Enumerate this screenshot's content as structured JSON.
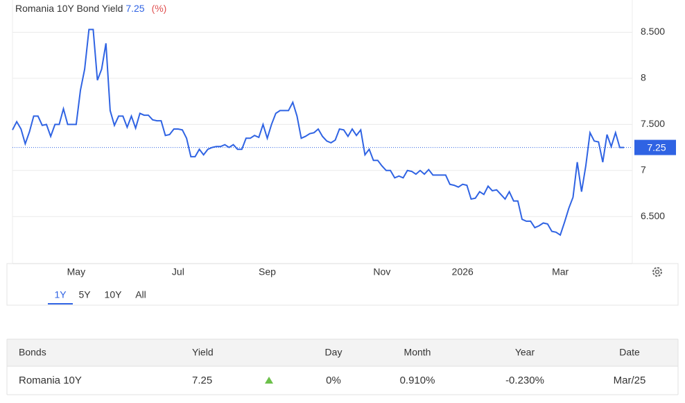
{
  "chart_data": {
    "type": "line",
    "title": "Romania 10Y Bond Yield",
    "title_value": 7.25,
    "unit": "(%)",
    "categories": [
      null,
      null,
      null,
      null,
      null,
      null,
      null,
      null,
      null,
      null,
      null,
      null,
      null,
      null,
      null,
      "May",
      null,
      null,
      null,
      null,
      null,
      null,
      null,
      null,
      null,
      null,
      null,
      null,
      null,
      null,
      null,
      null,
      null,
      null,
      null,
      null,
      null,
      null,
      null,
      "Jul",
      null,
      null,
      null,
      null,
      null,
      null,
      null,
      null,
      null,
      null,
      null,
      null,
      null,
      null,
      null,
      null,
      null,
      null,
      null,
      null,
      "Sep",
      null,
      null,
      null,
      null,
      null,
      null,
      null,
      null,
      null,
      null,
      null,
      null,
      null,
      null,
      null,
      null,
      null,
      null,
      null,
      null,
      null,
      null,
      null,
      null,
      null,
      null,
      "Nov",
      null,
      null,
      null,
      null,
      null,
      null,
      null,
      null,
      null,
      null,
      null,
      null,
      null,
      null,
      null,
      null,
      null,
      null,
      "2026",
      null,
      null,
      null,
      null,
      null,
      null,
      null,
      null,
      null,
      null,
      null,
      null,
      null,
      null,
      null,
      null,
      null,
      null,
      null,
      null,
      null,
      null,
      "Mar",
      null,
      null,
      null,
      null,
      null,
      null,
      null,
      null,
      null,
      null,
      null,
      null,
      null,
      null,
      null
    ],
    "series": [
      {
        "name": "Romania 10Y",
        "color": "#2f63e3",
        "values": [
          7.44,
          7.53,
          7.45,
          7.29,
          7.42,
          7.59,
          7.59,
          7.49,
          7.5,
          7.37,
          7.5,
          7.5,
          7.67,
          7.5,
          7.5,
          7.5,
          7.87,
          8.1,
          8.53,
          8.53,
          7.98,
          8.1,
          8.38,
          7.65,
          7.49,
          7.59,
          7.59,
          7.47,
          7.59,
          7.46,
          7.62,
          7.6,
          7.6,
          7.55,
          7.54,
          7.54,
          7.38,
          7.39,
          7.45,
          7.45,
          7.44,
          7.35,
          7.15,
          7.15,
          7.23,
          7.17,
          7.23,
          7.25,
          7.26,
          7.26,
          7.28,
          7.25,
          7.28,
          7.23,
          7.23,
          7.35,
          7.35,
          7.38,
          7.36,
          7.5,
          7.35,
          7.5,
          7.62,
          7.65,
          7.65,
          7.65,
          7.74,
          7.59,
          7.35,
          7.37,
          7.4,
          7.41,
          7.45,
          7.37,
          7.32,
          7.3,
          7.33,
          7.45,
          7.44,
          7.37,
          7.45,
          7.38,
          7.44,
          7.17,
          7.23,
          7.11,
          7.11,
          7.05,
          7.0,
          7.0,
          6.92,
          6.94,
          6.92,
          7.0,
          6.99,
          6.96,
          7.0,
          6.96,
          7.01,
          6.95,
          6.95,
          6.95,
          6.95,
          6.85,
          6.84,
          6.82,
          6.85,
          6.84,
          6.69,
          6.7,
          6.77,
          6.74,
          6.83,
          6.78,
          6.79,
          6.74,
          6.69,
          6.77,
          6.67,
          6.67,
          6.47,
          6.45,
          6.45,
          6.38,
          6.4,
          6.43,
          6.42,
          6.34,
          6.33,
          6.3,
          6.44,
          6.59,
          6.71,
          7.09,
          6.77,
          7.05,
          7.41,
          7.32,
          7.31,
          7.09,
          7.39,
          7.26,
          7.41,
          7.25,
          7.25
        ]
      }
    ],
    "current": 7.25,
    "ylim": [
      5.99,
      8.85
    ],
    "yticks": [
      {
        "value": 6.5,
        "label": "6.500"
      },
      7,
      {
        "value": 7.5,
        "label": "7.500"
      },
      8,
      {
        "value": 8.5,
        "label": "8.500"
      }
    ],
    "grid": true
  },
  "ranges": {
    "items": [
      "1Y",
      "5Y",
      "10Y",
      "All"
    ],
    "active": 0
  },
  "table": {
    "headers": [
      "Bonds",
      "Yield",
      "Day",
      "Month",
      "Year",
      "Date"
    ],
    "rows": [
      [
        "Romania 10Y",
        "7.25",
        "0%",
        "0.910%",
        "-0.230%",
        "Mar/25"
      ]
    ]
  }
}
